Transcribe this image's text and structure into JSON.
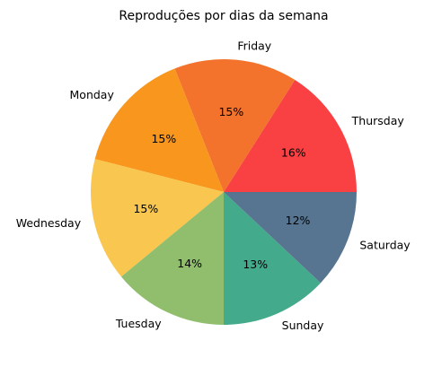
{
  "chart_data": {
    "type": "pie",
    "title": "Reproduções por dias da semana",
    "start_angle_deg": 0,
    "direction": "counterclockwise",
    "slices": [
      {
        "label": "Thursday",
        "value": 16,
        "pct_label": "16%",
        "color": "#f94144"
      },
      {
        "label": "Friday",
        "value": 15,
        "pct_label": "15%",
        "color": "#f3722c"
      },
      {
        "label": "Monday",
        "value": 15,
        "pct_label": "15%",
        "color": "#f8961e"
      },
      {
        "label": "Wednesday",
        "value": 15,
        "pct_label": "15%",
        "color": "#f9c74f"
      },
      {
        "label": "Tuesday",
        "value": 14,
        "pct_label": "14%",
        "color": "#90be6d"
      },
      {
        "label": "Sunday",
        "value": 13,
        "pct_label": "13%",
        "color": "#43aa8b"
      },
      {
        "label": "Saturday",
        "value": 12,
        "pct_label": "12%",
        "color": "#577590"
      }
    ]
  }
}
